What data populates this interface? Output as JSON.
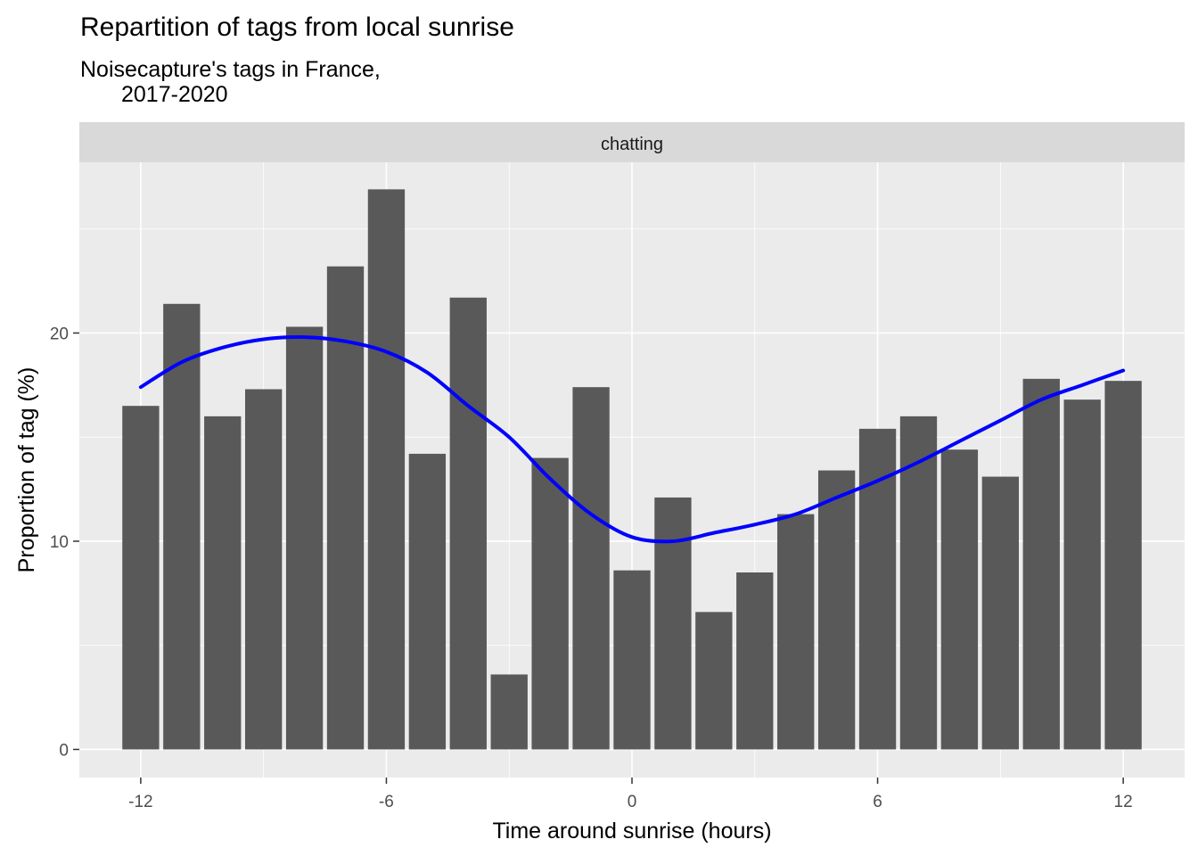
{
  "chart_data": {
    "type": "bar",
    "title": "Repartition of tags from local sunrise",
    "subtitle_lines": [
      "Noisecapture's tags in France,",
      "2017-2020"
    ],
    "facet_label": "chatting",
    "xlabel": "Time around sunrise (hours)",
    "ylabel": "Proportion of tag (%)",
    "x": [
      -12,
      -11,
      -10,
      -9,
      -8,
      -7,
      -6,
      -5,
      -4,
      -3,
      -2,
      -1,
      0,
      1,
      2,
      3,
      4,
      5,
      6,
      7,
      8,
      9,
      10,
      11,
      12
    ],
    "values": [
      16.5,
      21.4,
      16.0,
      17.3,
      20.3,
      23.2,
      26.9,
      14.2,
      21.7,
      3.6,
      14.0,
      17.4,
      8.6,
      12.1,
      6.6,
      8.5,
      11.3,
      13.4,
      15.4,
      16.0,
      14.4,
      13.1,
      17.8,
      16.8,
      17.7
    ],
    "smooth_line": {
      "color": "#0000ff",
      "x": [
        -12,
        -11,
        -10,
        -9,
        -8,
        -7,
        -6,
        -5,
        -4,
        -3,
        -2,
        -1,
        0,
        1,
        2,
        3,
        4,
        5,
        6,
        7,
        8,
        9,
        10,
        11,
        12
      ],
      "y": [
        17.4,
        18.6,
        19.3,
        19.7,
        19.8,
        19.6,
        19.1,
        18.1,
        16.5,
        15.0,
        13.0,
        11.3,
        10.2,
        10.0,
        10.4,
        10.8,
        11.3,
        12.1,
        12.9,
        13.8,
        14.8,
        15.8,
        16.8,
        17.5,
        18.2
      ]
    },
    "x_ticks": [
      -12,
      -6,
      0,
      6,
      12
    ],
    "x_tick_labels": [
      "-12",
      "-6",
      "0",
      "6",
      "12"
    ],
    "y_ticks": [
      0,
      10,
      20
    ],
    "y_tick_labels": [
      "0",
      "10",
      "20"
    ],
    "xlim": [
      -13.5,
      13.5
    ],
    "ylim": [
      -1.35,
      28.2
    ],
    "bar_color": "#595959",
    "panel_color": "#ebebeb",
    "strip_color": "#d9d9d9",
    "grid": true,
    "legend": "none"
  }
}
